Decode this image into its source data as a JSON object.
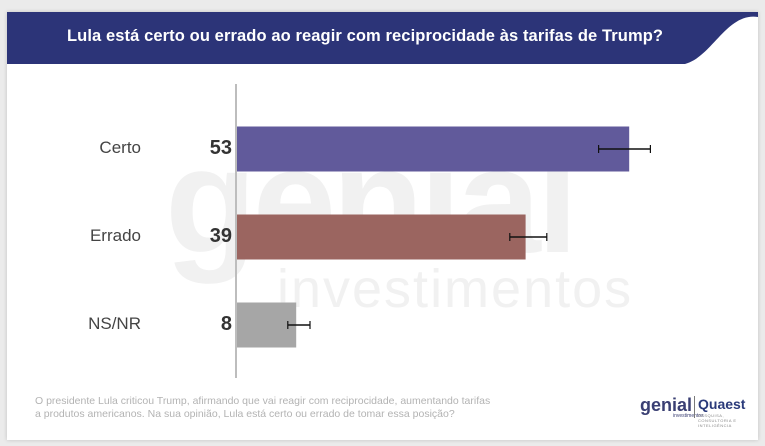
{
  "title": "Lula está certo ou errado ao reagir com reciprocidade às tarifas de Trump?",
  "chart_data": {
    "type": "bar",
    "orientation": "horizontal",
    "categories": [
      "Certo",
      "Errado",
      "NS/NR"
    ],
    "values": [
      53,
      39,
      8
    ],
    "value_labels": [
      "53",
      "39",
      "8"
    ],
    "error_bars": [
      [
        49,
        56
      ],
      [
        37,
        42
      ],
      [
        7,
        10
      ]
    ],
    "colors": [
      "#615a9b",
      "#9b6560",
      "#a6a6a6"
    ],
    "xlim": [
      0,
      60
    ]
  },
  "watermark": {
    "main": "genial",
    "sub": "investimentos"
  },
  "footer": {
    "text_line1": "O presidente Lula criticou Trump, afirmando que vai reagir com reciprocidade, aumentando tarifas",
    "text_line2": "a produtos americanos. Na sua opinião, Lula está certo ou errado de tomar essa posição?"
  },
  "logos": {
    "genial": "genial",
    "genial_sub": "investimentos",
    "quaest": "Quaest",
    "quaest_sub": "PESQUISA, CONSULTORIA E INTELIGÊNCIA"
  },
  "colors": {
    "banner": "#2c3478",
    "banner_accent": "#ffffff"
  }
}
